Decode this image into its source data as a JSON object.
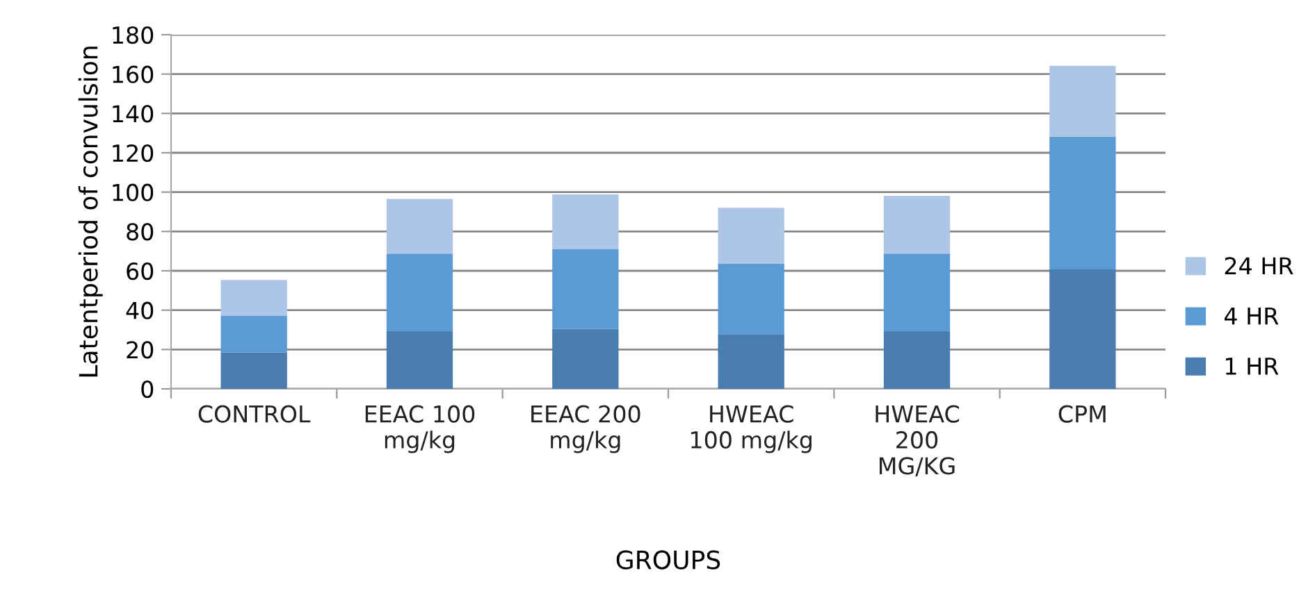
{
  "chart_data": {
    "type": "bar",
    "stacked": true,
    "xlabel": "GROUPS",
    "ylabel": "Latentperiod of convulsion",
    "categories": [
      "CONTROL",
      "EEAC 100\nmg/kg",
      "EEAC 200\nmg/kg",
      "HWEAC\n100 mg/kg",
      "HWEAC\n200\nMG/KG",
      "CPM"
    ],
    "series": [
      {
        "name": "1 HR",
        "color": "#4a7eb0",
        "values": [
          18.4,
          29.6,
          30.4,
          27.8,
          29.6,
          60.7
        ]
      },
      {
        "name": "4 HR",
        "color": "#5b9bd5",
        "values": [
          18.8,
          39.1,
          40.7,
          35.7,
          39.1,
          67.5
        ]
      },
      {
        "name": "24 HR",
        "color": "#aec6e6",
        "values": [
          18.1,
          27.8,
          27.7,
          28.5,
          29.4,
          36.0
        ]
      }
    ],
    "ylim": [
      0,
      180
    ],
    "yticks": [
      0,
      20,
      40,
      60,
      80,
      100,
      120,
      140,
      160,
      180
    ],
    "grid": "y",
    "legend": "right"
  }
}
